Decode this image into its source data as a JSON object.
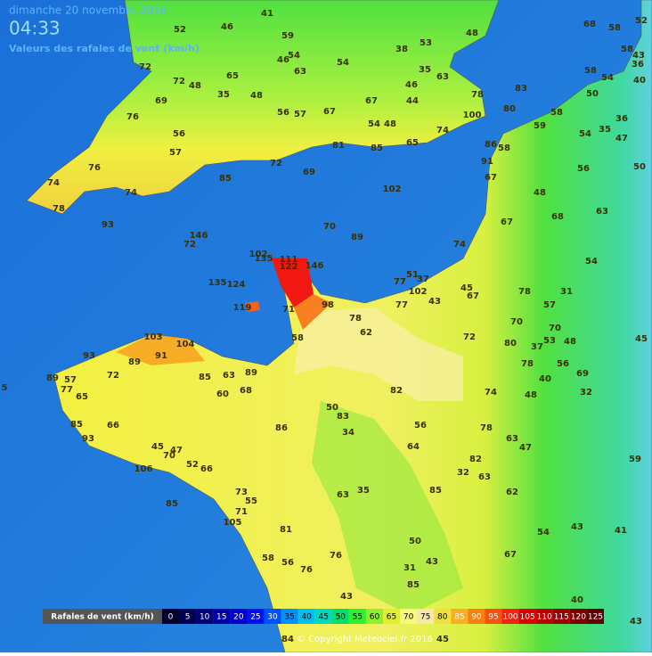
{
  "header": {
    "date": "dimanche 20 novembre 2016",
    "time": "04:33",
    "subtitle": "Valeurs des rafales de vent (km/h)"
  },
  "stations": [
    52,
    46,
    41,
    59,
    54,
    46,
    63,
    54,
    38,
    53,
    48,
    35,
    46,
    63,
    72,
    65,
    72,
    48,
    35,
    48,
    69,
    56,
    57,
    67,
    67,
    54,
    48,
    44,
    78,
    100,
    74,
    83,
    80,
    58,
    59,
    68,
    58,
    52,
    58,
    43,
    36,
    58,
    54,
    50,
    40,
    76,
    56,
    57,
    76,
    74,
    74,
    78,
    85,
    72,
    69,
    81,
    85,
    65,
    86,
    58,
    91,
    67,
    102,
    93,
    146,
    72,
    70,
    89,
    67,
    74,
    48,
    68,
    63,
    56,
    54,
    35,
    47,
    36,
    50,
    54,
    102,
    135,
    111,
    122,
    146,
    135,
    124,
    119,
    71,
    98,
    51,
    37,
    77,
    102,
    43,
    45,
    67,
    77,
    78,
    31,
    57,
    70,
    80,
    72,
    78,
    62,
    58,
    103,
    104,
    91,
    89,
    93,
    72,
    89,
    57,
    77,
    65,
    85,
    63,
    89,
    60,
    68,
    82,
    74,
    48,
    40,
    56,
    69,
    32,
    45,
    5,
    66,
    93,
    85,
    86,
    50,
    83,
    34,
    56,
    78,
    64,
    82,
    32,
    63,
    63,
    47,
    59,
    45,
    47,
    70,
    52,
    66,
    106,
    85,
    73,
    35,
    63,
    85,
    62,
    55,
    71,
    105,
    81,
    50,
    54,
    43,
    41,
    58,
    56,
    76,
    76,
    31,
    43,
    67,
    85,
    43,
    40,
    43,
    45,
    84,
    70,
    53,
    48,
    37,
    78
  ],
  "legend": {
    "label": "Rafales de vent (km/h)",
    "items": [
      {
        "value": 0,
        "color": "#00002a"
      },
      {
        "value": 5,
        "color": "#000050"
      },
      {
        "value": 10,
        "color": "#000078"
      },
      {
        "value": 15,
        "color": "#0000a8"
      },
      {
        "value": 20,
        "color": "#0000d0"
      },
      {
        "value": 25,
        "color": "#0010f0"
      },
      {
        "value": 30,
        "color": "#0050ff"
      },
      {
        "value": 35,
        "color": "#0090ff"
      },
      {
        "value": 40,
        "color": "#00c0f0"
      },
      {
        "value": 45,
        "color": "#00d8c0"
      },
      {
        "value": 50,
        "color": "#00e070"
      },
      {
        "value": 55,
        "color": "#30f030"
      },
      {
        "value": 60,
        "color": "#90f030"
      },
      {
        "value": 65,
        "color": "#e0f030"
      },
      {
        "value": 70,
        "color": "#f8f880"
      },
      {
        "value": 75,
        "color": "#f8e8a8"
      },
      {
        "value": 80,
        "color": "#f0e040"
      },
      {
        "value": 85,
        "color": "#f8b020"
      },
      {
        "value": 90,
        "color": "#f88010"
      },
      {
        "value": 95,
        "color": "#f85010"
      },
      {
        "value": 100,
        "color": "#f82010"
      },
      {
        "value": 105,
        "color": "#e00000"
      },
      {
        "value": 110,
        "color": "#c00000"
      },
      {
        "value": 115,
        "color": "#a00000"
      },
      {
        "value": 120,
        "color": "#800000"
      },
      {
        "value": 125,
        "color": "#600000"
      }
    ]
  },
  "copyright": "© Copyright Meteociel.fr 2016"
}
